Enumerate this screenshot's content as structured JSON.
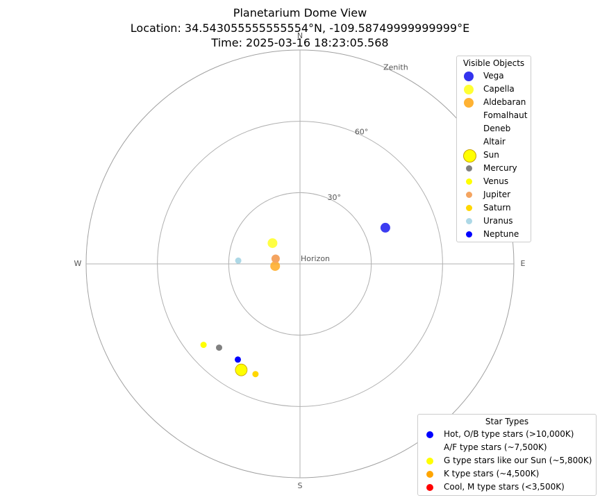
{
  "title_lines": [
    "Planetarium Dome View",
    "Location: 34.543055555555554°N, -109.58749999999999°E",
    "Time: 2025-03-16 18:23:05.568"
  ],
  "chart_data": {
    "type": "scatter",
    "projection": "polar-dome",
    "altitude_ring_labels": [
      "30°",
      "60°"
    ],
    "center_label": "Horizon",
    "outer_label": "Zenith",
    "directions": {
      "north": "N",
      "east": "E",
      "south": "S",
      "west": "W"
    },
    "rmax": 90,
    "objects": [
      {
        "name": "Vega",
        "r": 39,
        "az": 67,
        "color": "#1a1aee",
        "category": "star"
      },
      {
        "name": "Capella",
        "r": 14.5,
        "az": 307,
        "color": "#ffff22",
        "category": "star"
      },
      {
        "name": "Aldebaran",
        "r": 10.5,
        "az": 265,
        "color": "#ffaa22",
        "category": "star"
      },
      {
        "name": "Sun",
        "r": 51,
        "az": 209,
        "color": "#ffff00",
        "category": "sun"
      },
      {
        "name": "Mercury",
        "r": 49,
        "az": 224,
        "color": "#808080",
        "category": "planet"
      },
      {
        "name": "Venus",
        "r": 53,
        "az": 230,
        "color": "#ffff00",
        "category": "planet"
      },
      {
        "name": "Jupiter",
        "r": 10.5,
        "az": 282,
        "color": "#f4a460",
        "category": "planet"
      },
      {
        "name": "Saturn",
        "r": 50,
        "az": 202,
        "color": "#ffd700",
        "category": "planet"
      },
      {
        "name": "Uranus",
        "r": 26,
        "az": 273,
        "color": "#add8e6",
        "category": "planet"
      },
      {
        "name": "Neptune",
        "r": 48,
        "az": 213,
        "color": "#0000ff",
        "category": "planet"
      }
    ]
  },
  "legend_visible": {
    "title": "Visible Objects",
    "items": [
      {
        "label": "Vega",
        "color": "#3333ee",
        "shape": "star"
      },
      {
        "label": "Capella",
        "color": "#ffff33",
        "shape": "star"
      },
      {
        "label": "Aldebaran",
        "color": "#ffb233",
        "shape": "star"
      },
      {
        "label": "Fomalhaut",
        "color": "none",
        "shape": "star"
      },
      {
        "label": "Deneb",
        "color": "none",
        "shape": "star"
      },
      {
        "label": "Altair",
        "color": "none",
        "shape": "star"
      },
      {
        "label": "Sun",
        "color": "#ffff00",
        "shape": "sun"
      },
      {
        "label": "Mercury",
        "color": "#808080",
        "shape": "planet"
      },
      {
        "label": "Venus",
        "color": "#ffff00",
        "shape": "planet"
      },
      {
        "label": "Jupiter",
        "color": "#f4a460",
        "shape": "planet"
      },
      {
        "label": "Saturn",
        "color": "#ffd700",
        "shape": "planet"
      },
      {
        "label": "Uranus",
        "color": "#add8e6",
        "shape": "planet"
      },
      {
        "label": "Neptune",
        "color": "#0000ff",
        "shape": "planet"
      }
    ]
  },
  "legend_types": {
    "title": "Star Types",
    "items": [
      {
        "label": "Hot, O/B type stars (>10,000K)",
        "color": "#0000ff"
      },
      {
        "label": "A/F type stars (~7,500K)",
        "color": "#ffffff"
      },
      {
        "label": "G type stars like our Sun (~5,800K)",
        "color": "#ffff00"
      },
      {
        "label": "K type stars (~4,500K)",
        "color": "#ffa500"
      },
      {
        "label": "Cool, M type stars (<3,500K)",
        "color": "#ff0000"
      }
    ]
  }
}
